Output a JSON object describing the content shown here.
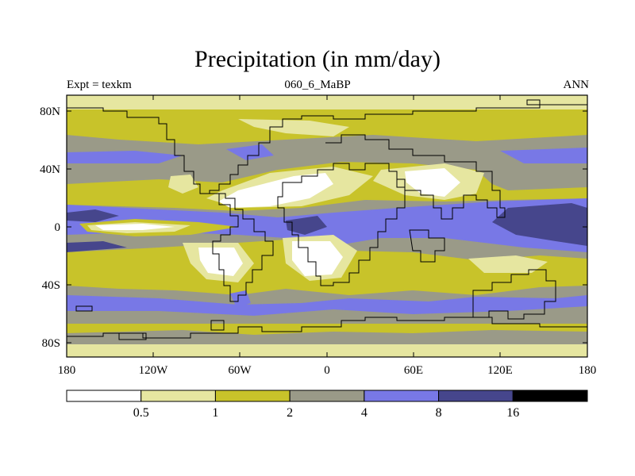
{
  "title": "Precipitation (in mm/day)",
  "left_label": "Expt = texkm",
  "center_label": "060_6_MaBP",
  "right_label": "ANN",
  "lat_ticks": [
    "80N",
    "40N",
    "0",
    "40S",
    "80S"
  ],
  "lon_ticks": [
    "180",
    "120W",
    "60W",
    "0",
    "60E",
    "120E",
    "180"
  ],
  "colorbar": {
    "levels": [
      "0.5",
      "1",
      "2",
      "4",
      "8",
      "16"
    ],
    "colors": [
      "#ffffff",
      "#e6e6a0",
      "#c8c32a",
      "#9a9a88",
      "#7878e6",
      "#46468c",
      "#000000"
    ]
  },
  "ocean_color": "#9a9a88"
}
